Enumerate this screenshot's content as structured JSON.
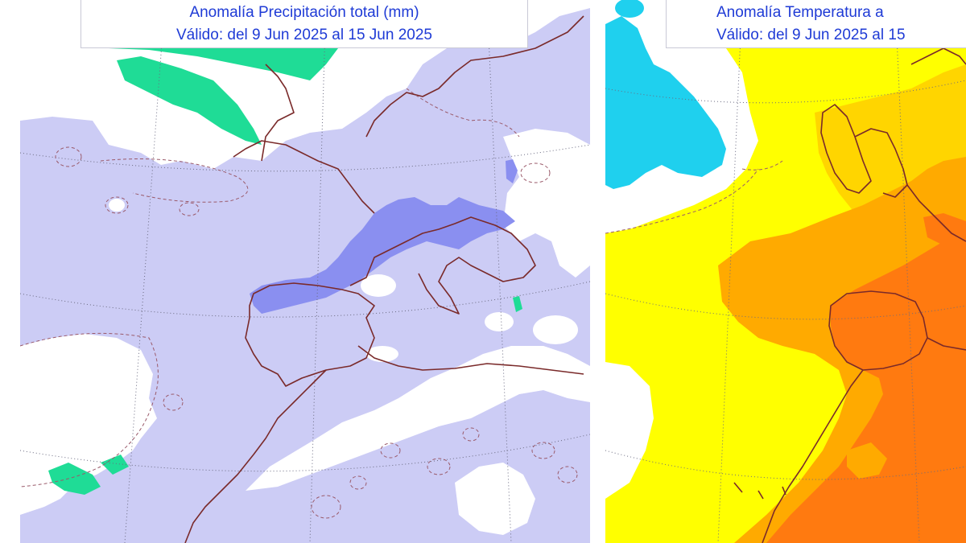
{
  "panels": [
    {
      "id": "precipitation",
      "title_line1": "Anomalía Precipitación total (mm)",
      "title_line2": "Válido: del 9 Jun 2025 al 15 Jun 2025",
      "colors": {
        "background": "#ccccf5",
        "near_normal": "#ffffff",
        "wetter": "#8a8ff0",
        "drier": "#1fdc96",
        "coastline": "#7a2a2a",
        "contour": "#9a5a6a",
        "grid": "#6a6a80"
      }
    },
    {
      "id": "temperature",
      "title_line1": "Anomalía Temperatura a",
      "title_line2": "Válido: del 9 Jun 2025 al 15",
      "colors": {
        "background": "#ffff00",
        "near_normal": "#ffffff",
        "cold": "#1fd0ee",
        "warm": "#ffd500",
        "warmer": "#ffaa00",
        "hot": "#ff7a10",
        "coastline": "#7a2a2a",
        "grid": "#6a6a80"
      }
    }
  ]
}
